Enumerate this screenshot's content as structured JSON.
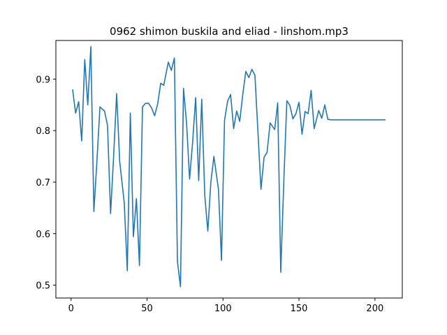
{
  "chart_data": {
    "type": "line",
    "title": "0962 shimon buskila and eliad - linshom.mp3",
    "xlabel": "",
    "ylabel": "",
    "xlim": [
      -10,
      218
    ],
    "ylim": [
      0.475,
      0.975
    ],
    "xticks": [
      0,
      50,
      100,
      150,
      200
    ],
    "yticks": [
      0.5,
      0.6,
      0.7,
      0.8,
      0.9
    ],
    "ytick_labels": [
      "0.5",
      "0.6",
      "0.7",
      "0.8",
      "0.9"
    ],
    "grid": false,
    "series": [
      {
        "color": "#1f77b4",
        "x": [
          1,
          3,
          5,
          7,
          9,
          11,
          13,
          15,
          17,
          19,
          22,
          24,
          26,
          28,
          30,
          32,
          35,
          37,
          39,
          41,
          43,
          45,
          47,
          49,
          51,
          53,
          55,
          57,
          59,
          61,
          64,
          66,
          68,
          70,
          72,
          74,
          76,
          78,
          80,
          82,
          84,
          86,
          88,
          90,
          92,
          94,
          97,
          99,
          101,
          103,
          105,
          107,
          109,
          111,
          113,
          115,
          117,
          119,
          121,
          123,
          125,
          127,
          129,
          131,
          134,
          136,
          138,
          140,
          142,
          144,
          146,
          148,
          150,
          152,
          154,
          156,
          158,
          160,
          163,
          165,
          167,
          169,
          171,
          173,
          175,
          177,
          179,
          181,
          183,
          185,
          187,
          189,
          191,
          193,
          195,
          197,
          199,
          201,
          203,
          205,
          207
        ],
        "values": [
          0.88,
          0.834,
          0.856,
          0.78,
          0.938,
          0.85,
          0.963,
          0.643,
          0.74,
          0.846,
          0.838,
          0.81,
          0.639,
          0.75,
          0.872,
          0.74,
          0.66,
          0.528,
          0.834,
          0.594,
          0.668,
          0.538,
          0.846,
          0.853,
          0.853,
          0.844,
          0.829,
          0.852,
          0.892,
          0.888,
          0.933,
          0.917,
          0.941,
          0.546,
          0.497,
          0.882,
          0.815,
          0.706,
          0.778,
          0.864,
          0.703,
          0.861,
          0.674,
          0.605,
          0.7,
          0.75,
          0.686,
          0.548,
          0.82,
          0.857,
          0.87,
          0.804,
          0.838,
          0.818,
          0.87,
          0.915,
          0.903,
          0.919,
          0.908,
          0.797,
          0.686,
          0.748,
          0.758,
          0.815,
          0.802,
          0.854,
          0.525,
          0.7,
          0.858,
          0.849,
          0.823,
          0.833,
          0.855,
          0.793,
          0.837,
          0.833,
          0.878,
          0.804,
          0.839,
          0.824,
          0.85,
          0.822,
          0.821,
          0.821,
          0.821,
          0.821,
          0.821,
          0.821,
          0.821,
          0.821,
          0.821,
          0.821,
          0.821,
          0.821,
          0.821,
          0.821,
          0.821,
          0.821,
          0.821,
          0.821,
          0.821
        ]
      }
    ]
  }
}
